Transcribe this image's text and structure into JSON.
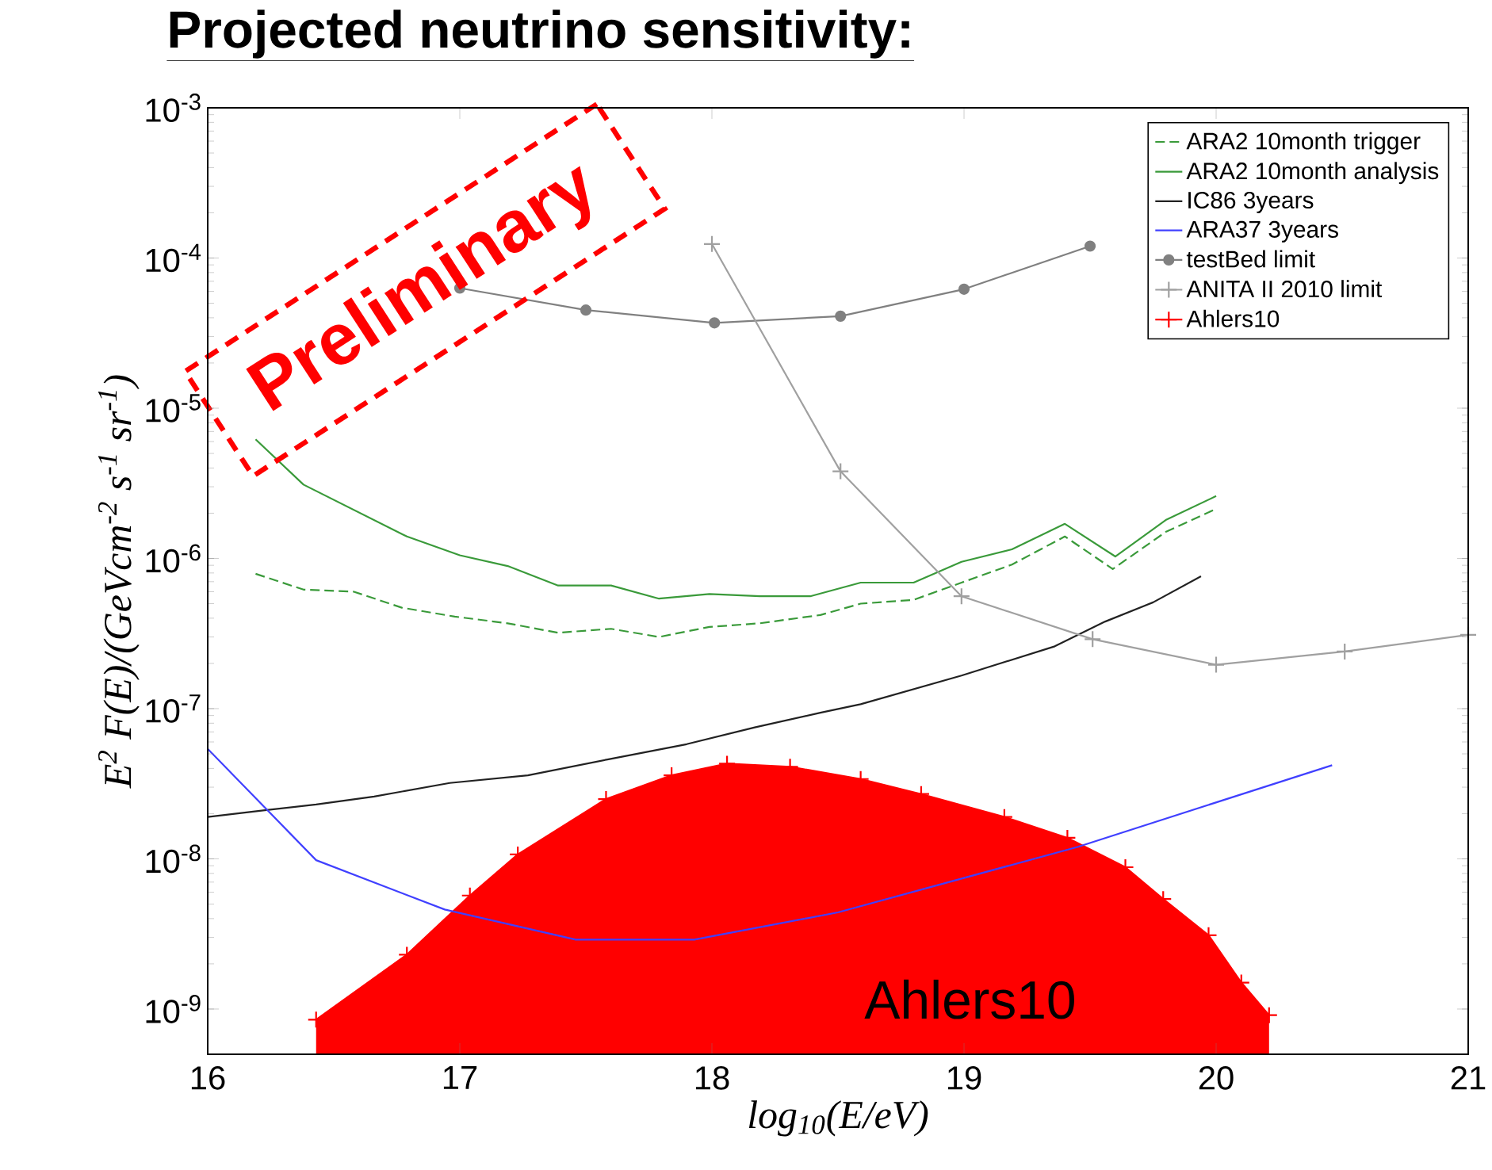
{
  "chart_data": {
    "type": "line",
    "title": "Projected neutrino sensitivity:",
    "xlabel": "log$_{10}$(E/eV)",
    "ylabel": "E$^{2}$ F(E)/(GeVcm$^{-2}$ s$^{-1}$ sr$^{-1}$)",
    "log": "y",
    "legend": "top right",
    "xlim": [
      16,
      21
    ],
    "ylim": [
      5e-10,
      0.001
    ],
    "xticks": [
      16,
      17,
      18,
      19,
      20,
      21
    ],
    "yticks": [
      {
        "value": 1e-09,
        "label": "10$^{-9}$"
      },
      {
        "value": 1e-08,
        "label": "10$^{-8}$"
      },
      {
        "value": 1e-07,
        "label": "10$^{-7}$"
      },
      {
        "value": 1e-06,
        "label": "10$^{-6}$"
      },
      {
        "value": 1e-05,
        "label": "10$^{-5}$"
      },
      {
        "value": 0.0001,
        "label": "10$^{-4}$"
      },
      {
        "value": 0.001,
        "label": "10$^{-3}$"
      }
    ],
    "series": [
      {
        "name": "ARA2 10month trigger",
        "color": "#3a9a3a",
        "line_style": "dashed",
        "x": [
          16.19,
          16.38,
          16.58,
          16.77,
          16.98,
          17.19,
          17.39,
          17.6,
          17.79,
          17.99,
          18.19,
          18.43,
          18.59,
          18.8,
          18.99,
          19.19,
          19.4,
          19.59,
          19.8,
          19.99
        ],
        "values": [
          7.9e-07,
          6.2e-07,
          6e-07,
          4.7e-07,
          4.1e-07,
          3.7e-07,
          3.2e-07,
          3.4e-07,
          3e-07,
          3.5e-07,
          3.7e-07,
          4.2e-07,
          5e-07,
          5.3e-07,
          6.9e-07,
          9.1e-07,
          1.4e-06,
          8.5e-07,
          1.5e-06,
          2.1e-06
        ]
      },
      {
        "name": "ARA2 10month analysis",
        "color": "#3a9a3a",
        "line_style": "solid",
        "x": [
          16.19,
          16.38,
          16.79,
          17.0,
          17.19,
          17.39,
          17.6,
          17.79,
          17.99,
          18.19,
          18.39,
          18.59,
          18.8,
          18.99,
          19.19,
          19.4,
          19.6,
          19.8,
          20.0
        ],
        "values": [
          6.2e-06,
          3.1e-06,
          1.4e-06,
          1.05e-06,
          8.9e-07,
          6.6e-07,
          6.6e-07,
          5.4e-07,
          5.8e-07,
          5.6e-07,
          5.6e-07,
          6.9e-07,
          6.9e-07,
          9.5e-07,
          1.15e-06,
          1.7e-06,
          1.03e-06,
          1.8e-06,
          2.6e-06
        ]
      },
      {
        "name": "IC86 3years",
        "color": "#222222",
        "line_style": "solid",
        "x": [
          16.0,
          16.22,
          16.43,
          16.66,
          16.96,
          17.27,
          17.59,
          17.9,
          18.17,
          18.43,
          18.59,
          18.99,
          19.36,
          19.56,
          19.75,
          19.94
        ],
        "values": [
          1.9e-08,
          2.1e-08,
          2.3e-08,
          2.6e-08,
          3.2e-08,
          3.6e-08,
          4.6e-08,
          5.8e-08,
          7.5e-08,
          9.4e-08,
          1.07e-07,
          1.66e-07,
          2.6e-07,
          3.8e-07,
          5.1e-07,
          7.6e-07
        ]
      },
      {
        "name": "ARA37 3years",
        "color": "#4040ff",
        "line_style": "solid",
        "x": [
          16.0,
          16.43,
          16.94,
          17.46,
          17.93,
          18.5,
          19.45,
          20.46
        ],
        "values": [
          5.4e-08,
          9.8e-09,
          4.6e-09,
          2.9e-09,
          2.9e-09,
          4.4e-09,
          1.2e-08,
          4.2e-08
        ]
      },
      {
        "name": "testBed limit",
        "color": "#808080",
        "line_style": "solid",
        "marker": "circle",
        "x": [
          17.0,
          17.5,
          18.01,
          18.51,
          19.0,
          19.5
        ],
        "values": [
          6.3e-05,
          4.5e-05,
          3.7e-05,
          4.1e-05,
          6.2e-05,
          0.00012
        ]
      },
      {
        "name": "ANITA II 2010 limit",
        "color": "#a0a0a0",
        "line_style": "solid",
        "marker": "cross",
        "x": [
          18.0,
          18.51,
          18.99,
          19.51,
          20.0,
          20.51,
          21.0
        ],
        "values": [
          0.000124,
          3.8e-06,
          5.6e-07,
          2.9e-07,
          1.96e-07,
          2.4e-07,
          3.1e-07
        ]
      },
      {
        "name": "Ahlers10",
        "type": "area",
        "color": "#ff0000",
        "line_style": "solid",
        "marker": "cross",
        "x": [
          16.43,
          16.79,
          17.04,
          17.23,
          17.58,
          17.84,
          18.06,
          18.31,
          18.59,
          18.83,
          19.16,
          19.41,
          19.64,
          19.79,
          19.97,
          20.1,
          20.21
        ],
        "values": [
          8.5e-10,
          2.3e-09,
          5.7e-09,
          1.07e-08,
          2.5e-08,
          3.6e-08,
          4.3e-08,
          4.1e-08,
          3.4e-08,
          2.7e-08,
          1.9e-08,
          1.38e-08,
          8.8e-09,
          5.4e-09,
          3.1e-09,
          1.5e-09,
          9.1e-10
        ]
      }
    ],
    "annotations": [
      "Preliminary",
      "Ahlers10"
    ]
  }
}
